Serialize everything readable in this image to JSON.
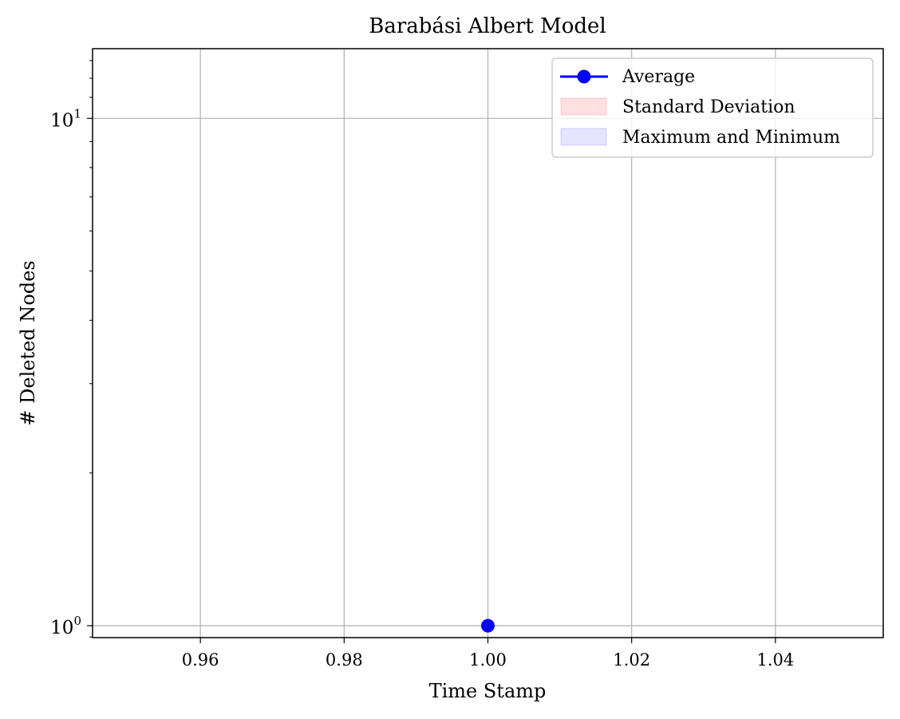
{
  "chart_data": {
    "type": "line",
    "title": "Barabási Albert Model",
    "xlabel": "Time Stamp",
    "ylabel": "# Deleted Nodes",
    "xlim": [
      0.945,
      1.055
    ],
    "x_ticks": [
      0.96,
      0.98,
      1.0,
      1.02,
      1.04
    ],
    "x_tick_labels": [
      "0.96",
      "0.98",
      "1.00",
      "1.02",
      "1.04"
    ],
    "y_scale": "log",
    "ylim": [
      0.9475,
      13.72
    ],
    "y_ticks": [
      1,
      10
    ],
    "y_tick_labels": [
      {
        "base": "10",
        "exp": "0"
      },
      {
        "base": "10",
        "exp": "1"
      }
    ],
    "y_minor_ticks": [
      2,
      3,
      4,
      5,
      6,
      7,
      8,
      9
    ],
    "grid": true,
    "legend_position": "top-right",
    "series": [
      {
        "name": "Average",
        "x": [
          1.0
        ],
        "y": [
          1
        ],
        "color": "#0000ff",
        "marker": "circle"
      }
    ],
    "bands": [
      {
        "name": "Standard Deviation",
        "color": "#ff0000",
        "alpha": 0.12
      },
      {
        "name": "Maximum and Minimum",
        "color": "#0000ff",
        "alpha": 0.1
      }
    ]
  }
}
